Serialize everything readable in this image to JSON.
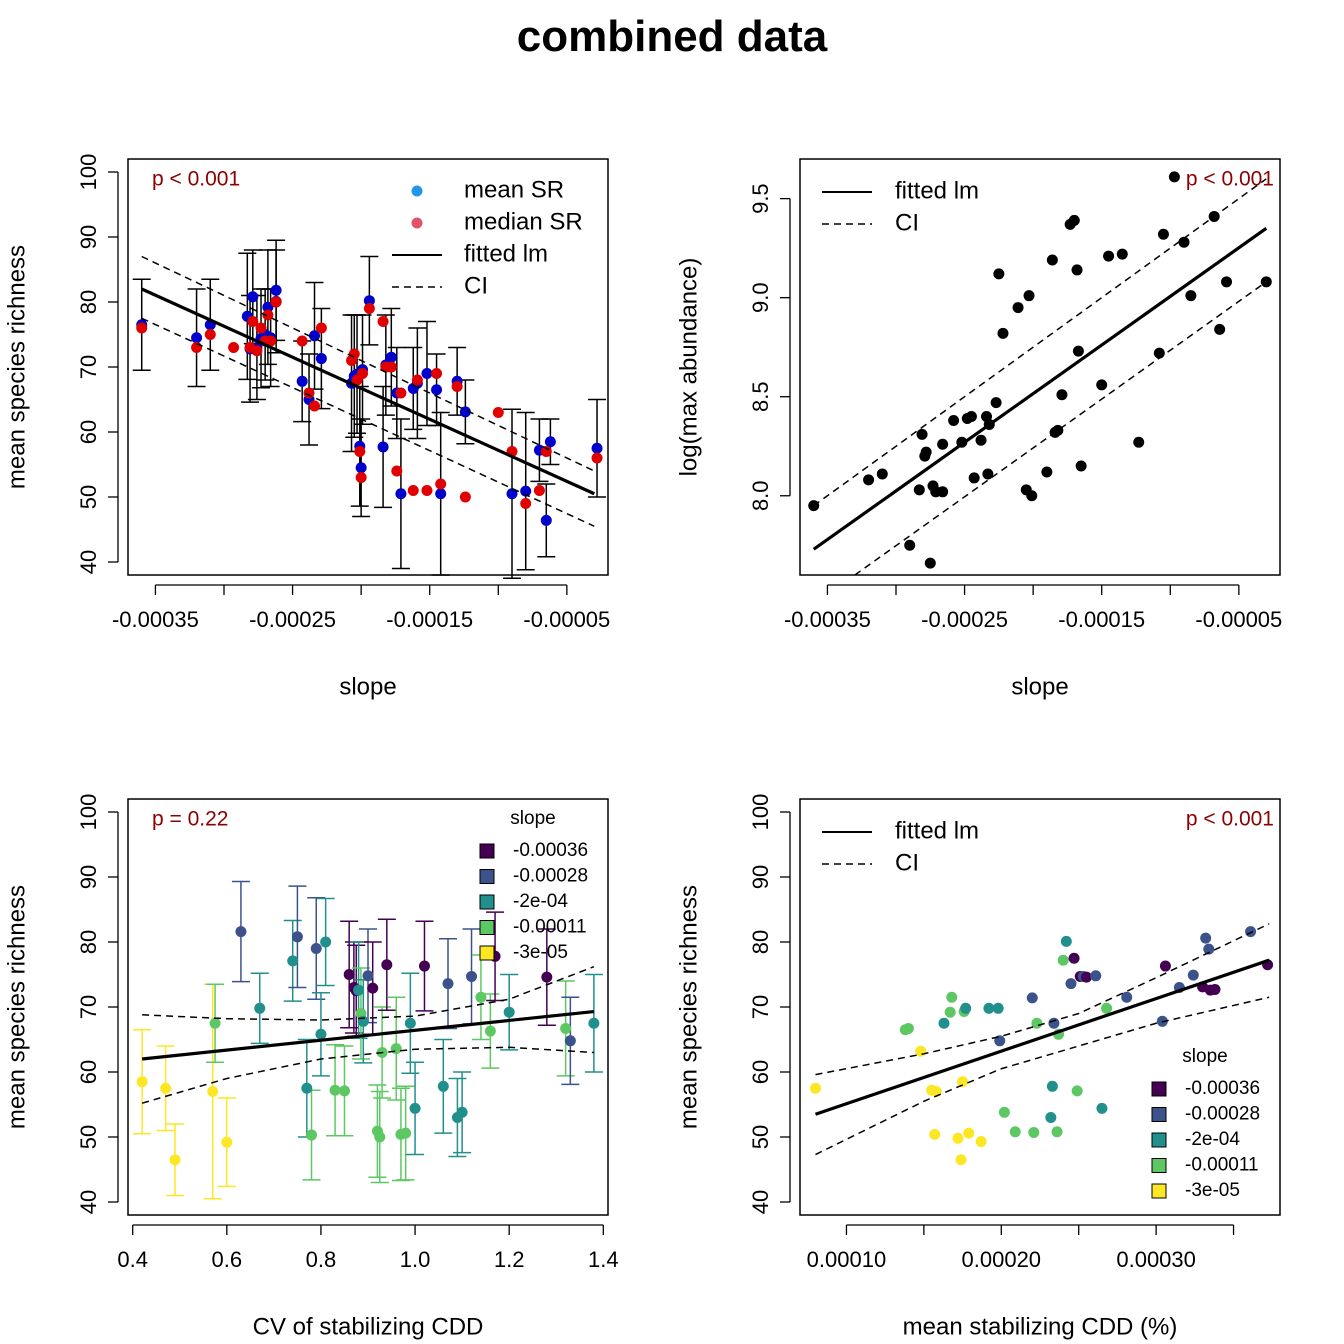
{
  "title": "combined data",
  "colors": {
    "black": "#000000",
    "blue_mean": "#2297E6",
    "red_median": "#DF536B",
    "p_text": "#8B0000",
    "dot_blue": "#0000CD",
    "dot_red": "#E00000",
    "viridis": [
      "#440154",
      "#3B528B",
      "#21908C",
      "#5DC863",
      "#FDE725"
    ]
  },
  "chart_data": [
    {
      "id": "panel1",
      "type": "scatter",
      "xlabel": "slope",
      "ylabel": "mean species richness",
      "xlim": [
        -0.00037,
        -2e-05
      ],
      "ylim": [
        38,
        102
      ],
      "xticks": [
        -0.00035,
        -0.0003,
        -0.00025,
        -0.0002,
        -0.00015,
        -0.0001,
        -5e-05
      ],
      "xtick_labels": [
        "-0.00035",
        "",
        "-0.00025",
        "",
        "-0.00015",
        "",
        "-0.00005"
      ],
      "yticks": [
        40,
        50,
        60,
        70,
        80,
        90,
        100
      ],
      "ytick_labels": [
        "40",
        "50",
        "60",
        "70",
        "80",
        "90",
        "100"
      ],
      "p_label": "p < 0.001",
      "legend": {
        "position": "top-right",
        "entries": [
          "mean SR",
          "median SR",
          "fitted lm",
          "CI"
        ]
      },
      "fit": {
        "x": [
          -0.00036,
          -3e-05
        ],
        "y": [
          82,
          50.5
        ]
      },
      "ci_upper": {
        "x": [
          -0.00036,
          -3e-05
        ],
        "y": [
          87,
          54
        ]
      },
      "ci_lower": {
        "x": [
          -0.00036,
          -3e-05
        ],
        "y": [
          77.5,
          45.5
        ]
      },
      "series": [
        {
          "name": "mean SR",
          "x": [
            -0.00036,
            -0.00032,
            -0.00031,
            -0.000283,
            -0.000281,
            -0.000279,
            -0.000276,
            -0.000273,
            -0.00027,
            -0.000268,
            -0.000266,
            -0.000262,
            -0.000262,
            -0.000243,
            -0.000238,
            -0.000234,
            -0.000229,
            -0.000207,
            -0.000205,
            -0.000203,
            -0.000201,
            -0.0002,
            -0.000199,
            -0.000194,
            -0.000184,
            -0.000182,
            -0.000178,
            -0.000174,
            -0.000171,
            -0.000162,
            -0.000159,
            -0.000152,
            -0.000145,
            -0.000142,
            -0.00013,
            -0.000124,
            -9e-05,
            -8e-05,
            -7e-05,
            -6.5e-05,
            -6.2e-05,
            -2.8e-05
          ],
          "y": [
            76.5,
            74.5,
            76.5,
            77.8,
            72.8,
            80.8,
            73,
            74.4,
            75,
            79.2,
            74.5,
            81.8,
            80.1,
            67.8,
            65,
            74.8,
            71.3,
            67.5,
            68.6,
            68.9,
            57.8,
            54.5,
            69.6,
            80.2,
            57.7,
            70.3,
            71.5,
            66,
            50.5,
            66.7,
            67.5,
            69.0,
            66.5,
            50.5,
            67.8,
            63.1,
            50.5,
            50.9,
            57.2,
            46.4,
            58.5,
            57.5
          ],
          "err_up": [
            83.5,
            82,
            83.5,
            87.5,
            81,
            88,
            81,
            82,
            82,
            88,
            82,
            89.5,
            88,
            74,
            72,
            83,
            79,
            78,
            78,
            78,
            67,
            62,
            78,
            87,
            67,
            78,
            79,
            73,
            62,
            73,
            76,
            77,
            72,
            63,
            73,
            68,
            63.5,
            63,
            62,
            52,
            62,
            65
          ]
        },
        {
          "name": "median SR",
          "x": [
            -0.00036,
            -0.00032,
            -0.00031,
            -0.000293,
            -0.000281,
            -0.000279,
            -0.000276,
            -0.000273,
            -0.00027,
            -0.000268,
            -0.000266,
            -0.000262,
            -0.000262,
            -0.000243,
            -0.000238,
            -0.000234,
            -0.000229,
            -0.000207,
            -0.000205,
            -0.000203,
            -0.000201,
            -0.0002,
            -0.000199,
            -0.000194,
            -0.000184,
            -0.000182,
            -0.000178,
            -0.000174,
            -0.000171,
            -0.000162,
            -0.000159,
            -0.000152,
            -0.000145,
            -0.000142,
            -0.00013,
            -0.000124,
            -0.0001,
            -9e-05,
            -8e-05,
            -7e-05,
            -6.5e-05,
            -2.8e-05
          ],
          "y": [
            76,
            73,
            75,
            73,
            73,
            77,
            72.5,
            76,
            74,
            78,
            74,
            80,
            80,
            74,
            66,
            64,
            76,
            71,
            72,
            68,
            57,
            53,
            69,
            79,
            77,
            70,
            70,
            54,
            66,
            51,
            68,
            51,
            69,
            52,
            67,
            50,
            63,
            57,
            49,
            51,
            57,
            56
          ]
        }
      ]
    },
    {
      "id": "panel2",
      "type": "scatter",
      "xlabel": "slope",
      "ylabel": "log(max abundance)",
      "xlim": [
        -0.00037,
        -2e-05
      ],
      "ylim": [
        7.6,
        9.7
      ],
      "xticks": [
        -0.00035,
        -0.0003,
        -0.00025,
        -0.0002,
        -0.00015,
        -0.0001,
        -5e-05
      ],
      "xtick_labels": [
        "-0.00035",
        "",
        "-0.00025",
        "",
        "-0.00015",
        "",
        "-0.00005"
      ],
      "yticks": [
        8.0,
        8.5,
        9.0,
        9.5
      ],
      "ytick_labels": [
        "8.0",
        "8.5",
        "9.0",
        "9.5"
      ],
      "p_label": "p < 0.001",
      "legend": {
        "position": "top-left",
        "entries": [
          "fitted lm",
          "CI"
        ]
      },
      "fit": {
        "x": [
          -0.00036,
          -3e-05
        ],
        "y": [
          7.73,
          9.35
        ]
      },
      "ci_upper": {
        "x": [
          -0.00036,
          -3e-05
        ],
        "y": [
          7.95,
          9.6
        ]
      },
      "ci_lower": {
        "x": [
          -0.00033,
          -3e-05
        ],
        "y": [
          7.6,
          9.08
        ]
      },
      "series": [
        {
          "name": "",
          "x": [
            -0.00036,
            -0.00032,
            -0.00031,
            -0.00029,
            -0.000283,
            -0.000281,
            -0.000279,
            -0.000278,
            -0.000275,
            -0.000273,
            -0.000271,
            -0.000266,
            -0.000266,
            -0.000258,
            -0.000252,
            -0.000248,
            -0.000245,
            -0.000243,
            -0.000238,
            -0.000234,
            -0.000233,
            -0.000232,
            -0.000227,
            -0.000225,
            -0.000222,
            -0.000211,
            -0.000205,
            -0.000203,
            -0.000201,
            -0.00019,
            -0.000186,
            -0.000184,
            -0.000182,
            -0.000179,
            -0.000173,
            -0.00017,
            -0.000168,
            -0.000167,
            -0.000165,
            -0.00015,
            -0.000145,
            -0.000135,
            -0.000123,
            -0.000108,
            -0.000105,
            -9.7e-05,
            -9e-05,
            -8.5e-05,
            -6.8e-05,
            -6.4e-05,
            -5.9e-05,
            -3e-05
          ],
          "y": [
            7.95,
            8.08,
            8.11,
            7.75,
            8.03,
            8.31,
            8.2,
            8.22,
            7.66,
            8.05,
            8.02,
            8.26,
            8.02,
            8.38,
            8.27,
            8.39,
            8.4,
            8.09,
            8.28,
            8.4,
            8.11,
            8.36,
            8.47,
            9.12,
            8.82,
            8.95,
            8.03,
            9.01,
            8.0,
            8.12,
            9.19,
            8.32,
            8.33,
            8.51,
            9.37,
            9.39,
            9.14,
            8.73,
            8.15,
            8.56,
            9.21,
            9.22,
            8.27,
            8.72,
            9.32,
            9.61,
            9.28,
            9.01,
            9.41,
            8.84,
            9.08,
            9.08
          ]
        }
      ]
    },
    {
      "id": "panel3",
      "type": "scatter",
      "xlabel": "CV of stabilizing CDD",
      "ylabel": "mean species richness",
      "xlim": [
        0.39,
        1.41
      ],
      "ylim": [
        38,
        102
      ],
      "xticks": [
        0.4,
        0.6,
        0.8,
        1.0,
        1.2,
        1.4
      ],
      "xtick_labels": [
        "0.4",
        "0.6",
        "0.8",
        "1.0",
        "1.2",
        "1.4"
      ],
      "yticks": [
        40,
        50,
        60,
        70,
        80,
        90,
        100
      ],
      "ytick_labels": [
        "40",
        "50",
        "60",
        "70",
        "80",
        "90",
        "100"
      ],
      "p_label": "p = 0.22",
      "legend": {
        "position": "top-right",
        "title": "slope",
        "entries": [
          "-0.00036",
          "-0.00028",
          "-2e-04",
          "-0.00011",
          "-3e-05"
        ]
      },
      "fit": {
        "x": [
          0.42,
          1.38
        ],
        "y": [
          62,
          69.3
        ]
      },
      "ci_upper": {
        "x": [
          0.42,
          0.6,
          0.8,
          1.0,
          1.2,
          1.38
        ],
        "y": [
          68.8,
          68.2,
          68.0,
          68.6,
          71.2,
          76.2
        ]
      },
      "ci_lower": {
        "x": [
          0.42,
          0.6,
          0.8,
          1.0,
          1.2,
          1.38
        ],
        "y": [
          55.2,
          59.0,
          62.0,
          63.5,
          63.8,
          63.0
        ]
      },
      "series": [
        {
          "name": "",
          "x": [
            0.42,
            0.47,
            0.49,
            0.57,
            0.575,
            0.6,
            0.63,
            0.67,
            0.74,
            0.75,
            0.77,
            0.78,
            0.79,
            0.8,
            0.81,
            0.83,
            0.85,
            0.86,
            0.87,
            0.875,
            0.88,
            0.885,
            0.89,
            0.9,
            0.91,
            0.92,
            0.925,
            0.93,
            0.94,
            0.96,
            0.97,
            0.98,
            0.99,
            1.0,
            1.02,
            1.06,
            1.07,
            1.09,
            1.1,
            1.12,
            1.14,
            1.16,
            1.17,
            1.2,
            1.28,
            1.32,
            1.33,
            1.38
          ],
          "y": [
            58.5,
            57.5,
            46.5,
            57,
            67.5,
            49.2,
            81.6,
            69.8,
            77.1,
            80.8,
            57.5,
            50.3,
            79,
            65.8,
            80,
            57.2,
            57.1,
            75,
            73,
            72.5,
            72.6,
            69,
            67.8,
            74.8,
            72.9,
            50.9,
            50,
            63,
            76.5,
            63.6,
            50.4,
            50.6,
            67.5,
            54.4,
            76.3,
            57.8,
            73.6,
            53,
            53.8,
            74.7,
            71.5,
            66.3,
            77.8,
            69.2,
            74.6,
            66.7,
            64.8,
            67.5
          ],
          "err_up": [
            66.5,
            64,
            52,
            73.5,
            73.5,
            56,
            89.3,
            75.2,
            83.3,
            88.6,
            65,
            57.2,
            86.8,
            72.2,
            86.7,
            64.2,
            64,
            83.2,
            80,
            79.5,
            80,
            76,
            74.2,
            82,
            80,
            58,
            57,
            70,
            83.5,
            71.5,
            57.5,
            57.8,
            75.2,
            61.5,
            83.2,
            65,
            80.5,
            59,
            60,
            82,
            78,
            72,
            84.6,
            75,
            82,
            74,
            71.5,
            75
          ],
          "group": [
            4,
            4,
            4,
            4,
            3,
            4,
            1,
            2,
            2,
            1,
            2,
            3,
            1,
            2,
            2,
            3,
            3,
            0,
            0,
            0,
            2,
            3,
            2,
            1,
            0,
            3,
            3,
            3,
            0,
            3,
            3,
            3,
            2,
            2,
            0,
            2,
            1,
            2,
            2,
            1,
            3,
            3,
            0,
            2,
            0,
            3,
            1,
            2
          ]
        }
      ]
    },
    {
      "id": "panel4",
      "type": "scatter",
      "xlabel": "mean stabilizing CDD (%)",
      "ylabel": "mean species richness",
      "xlim": [
        7e-05,
        0.00038
      ],
      "ylim": [
        38,
        102
      ],
      "xticks": [
        0.0001,
        0.00015,
        0.0002,
        0.00025,
        0.0003,
        0.00035
      ],
      "xtick_labels": [
        "0.00010",
        "",
        "0.00020",
        "",
        "0.00030",
        ""
      ],
      "yticks": [
        40,
        50,
        60,
        70,
        80,
        90,
        100
      ],
      "ytick_labels": [
        "40",
        "50",
        "60",
        "70",
        "80",
        "90",
        "100"
      ],
      "p_label": "p < 0.001",
      "legend": {
        "position": "top-left",
        "entries": [
          "fitted lm",
          "CI"
        ],
        "color_title": "slope",
        "color_entries": [
          "-0.00036",
          "-0.00028",
          "-2e-04",
          "-0.00011",
          "-3e-05"
        ]
      },
      "fit": {
        "x": [
          8e-05,
          0.000373
        ],
        "y": [
          53.5,
          77.2
        ]
      },
      "ci_upper": {
        "x": [
          8e-05,
          0.00015,
          0.0002,
          0.00025,
          0.0003,
          0.000373
        ],
        "y": [
          59.6,
          62.8,
          65.5,
          69.0,
          74.5,
          82.8
        ]
      },
      "ci_lower": {
        "x": [
          8e-05,
          0.00015,
          0.0002,
          0.00025,
          0.0003,
          0.000373
        ],
        "y": [
          47.3,
          55.5,
          60.5,
          64.0,
          67.5,
          71.5
        ]
      },
      "series": [
        {
          "name": "",
          "x": [
            8e-05,
            0.000138,
            0.00014,
            0.000148,
            0.000155,
            0.000157,
            0.000158,
            0.000163,
            0.000167,
            0.000168,
            0.000172,
            0.000174,
            0.000175,
            0.000176,
            0.000177,
            0.000179,
            0.000187,
            0.000192,
            0.000198,
            0.000199,
            0.000202,
            0.000209,
            0.00022,
            0.000221,
            0.000223,
            0.000232,
            0.000233,
            0.000234,
            0.000236,
            0.000237,
            0.00024,
            0.000242,
            0.000245,
            0.000247,
            0.000249,
            0.000251,
            0.000253,
            0.000255,
            0.000261,
            0.000265,
            0.000268,
            0.000281,
            0.000304,
            0.000306,
            0.000315,
            0.000324,
            0.00033,
            0.000332,
            0.000334,
            0.000335,
            0.000338,
            0.000361,
            0.000372
          ],
          "y": [
            57.5,
            66.5,
            66.7,
            63.2,
            57.2,
            50.4,
            57,
            67.5,
            69.2,
            71.5,
            49.8,
            46.5,
            58.5,
            69.3,
            69.8,
            50.6,
            49.3,
            69.8,
            69.8,
            64.8,
            53.8,
            50.8,
            71.4,
            50.7,
            67.5,
            53,
            57.8,
            67.5,
            50.8,
            65.8,
            77.2,
            80.1,
            73.6,
            77.5,
            57.1,
            74.7,
            74.7,
            74.6,
            74.8,
            54.4,
            69.8,
            71.5,
            67.8,
            76.3,
            73.0,
            74.9,
            73.1,
            80.6,
            78.9,
            72.6,
            72.7,
            81.6,
            76.5
          ],
          "group": [
            4,
            3,
            3,
            4,
            4,
            4,
            4,
            2,
            3,
            3,
            4,
            4,
            4,
            3,
            2,
            4,
            4,
            2,
            2,
            1,
            3,
            3,
            1,
            3,
            3,
            2,
            2,
            1,
            3,
            3,
            3,
            2,
            1,
            0,
            3,
            0,
            1,
            0,
            1,
            2,
            3,
            1,
            1,
            0,
            1,
            1,
            0,
            1,
            1,
            0,
            0,
            1,
            0
          ]
        }
      ]
    }
  ]
}
